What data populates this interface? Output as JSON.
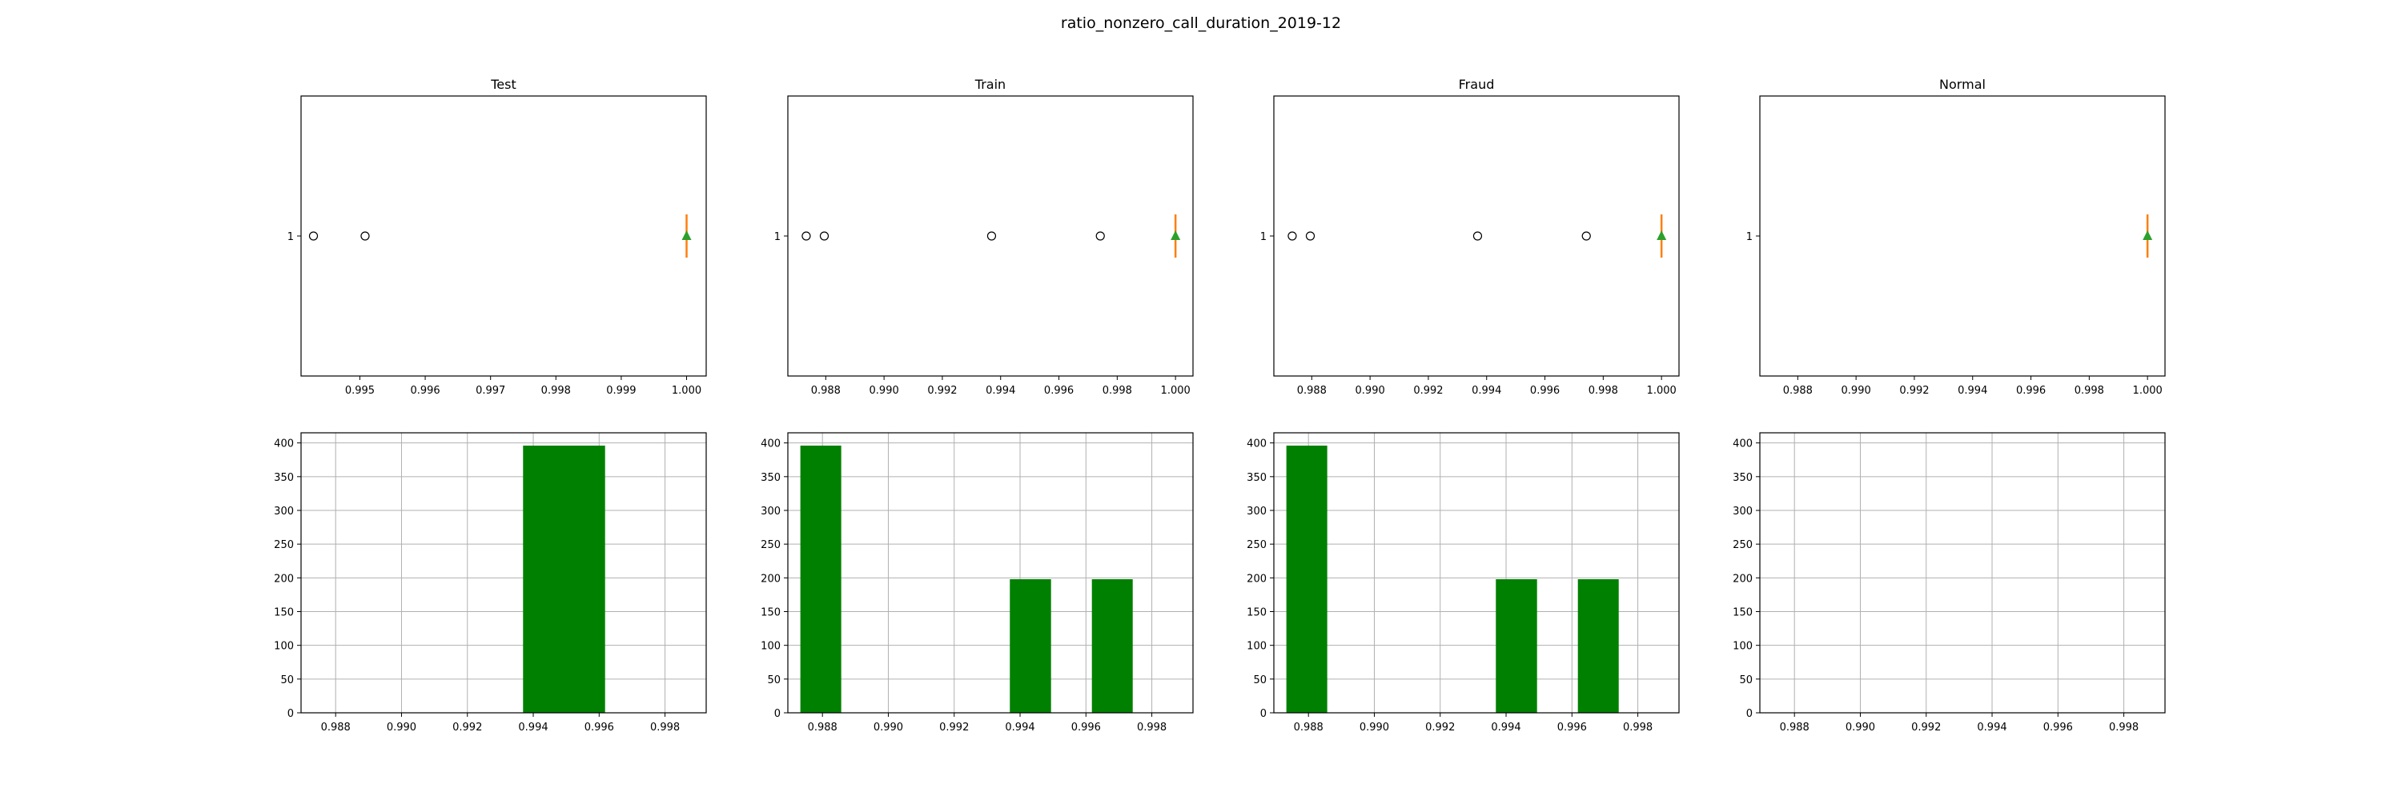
{
  "figure": {
    "title": "ratio_nonzero_call_duration_2019-12"
  },
  "colors": {
    "bar": "#008000",
    "median": "#ff7f0e",
    "mean_marker": "#2ca02c",
    "grid": "#b0b0b0",
    "axis": "#000000"
  },
  "chart_data": [
    {
      "type": "boxplot",
      "name": "Test",
      "title": "Test",
      "orient": "horizontal",
      "xlim": [
        0.9941,
        1.0003
      ],
      "xticks": [
        0.995,
        0.996,
        0.997,
        0.998,
        0.999,
        1.0
      ],
      "xtick_labels": [
        "0.995",
        "0.996",
        "0.997",
        "0.998",
        "0.999",
        "1.000"
      ],
      "yticks": [
        1
      ],
      "ytick_labels": [
        "1"
      ],
      "box": {
        "q1": 1.0,
        "median": 1.0,
        "q3": 1.0,
        "whisker_low": 1.0,
        "whisker_high": 1.0,
        "mean": 1.0
      },
      "fliers": [
        0.99429,
        0.99508
      ]
    },
    {
      "type": "boxplot",
      "name": "Train",
      "title": "Train",
      "orient": "horizontal",
      "xlim": [
        0.9867,
        1.0006
      ],
      "xticks": [
        0.988,
        0.99,
        0.992,
        0.994,
        0.996,
        0.998,
        1.0
      ],
      "xtick_labels": [
        "0.988",
        "0.990",
        "0.992",
        "0.994",
        "0.996",
        "0.998",
        "1.000"
      ],
      "yticks": [
        1
      ],
      "ytick_labels": [
        "1"
      ],
      "box": {
        "q1": 1.0,
        "median": 1.0,
        "q3": 1.0,
        "whisker_low": 1.0,
        "whisker_high": 1.0,
        "mean": 1.0
      },
      "fliers": [
        0.98733,
        0.98795,
        0.99369,
        0.99742
      ]
    },
    {
      "type": "boxplot",
      "name": "Fraud",
      "title": "Fraud",
      "orient": "horizontal",
      "xlim": [
        0.9867,
        1.0006
      ],
      "xticks": [
        0.988,
        0.99,
        0.992,
        0.994,
        0.996,
        0.998,
        1.0
      ],
      "xtick_labels": [
        "0.988",
        "0.990",
        "0.992",
        "0.994",
        "0.996",
        "0.998",
        "1.000"
      ],
      "yticks": [
        1
      ],
      "ytick_labels": [
        "1"
      ],
      "box": {
        "q1": 1.0,
        "median": 1.0,
        "q3": 1.0,
        "whisker_low": 1.0,
        "whisker_high": 1.0,
        "mean": 1.0
      },
      "fliers": [
        0.98733,
        0.98795,
        0.99369,
        0.99742
      ]
    },
    {
      "type": "boxplot",
      "name": "Normal",
      "title": "Normal",
      "orient": "horizontal",
      "xlim": [
        0.9867,
        1.0006
      ],
      "xticks": [
        0.988,
        0.99,
        0.992,
        0.994,
        0.996,
        0.998,
        1.0
      ],
      "xtick_labels": [
        "0.988",
        "0.990",
        "0.992",
        "0.994",
        "0.996",
        "0.998",
        "1.000"
      ],
      "yticks": [
        1
      ],
      "ytick_labels": [
        "1"
      ],
      "box": {
        "q1": 1.0,
        "median": 1.0,
        "q3": 1.0,
        "whisker_low": 1.0,
        "whisker_high": 1.0,
        "mean": 1.0
      },
      "fliers": []
    },
    {
      "type": "histogram",
      "name": "Test-hist",
      "xlim": [
        0.98695,
        0.99925
      ],
      "ylim": [
        0,
        415
      ],
      "xticks": [
        0.988,
        0.99,
        0.992,
        0.994,
        0.996,
        0.998
      ],
      "xtick_labels": [
        "0.988",
        "0.990",
        "0.992",
        "0.994",
        "0.996",
        "0.998"
      ],
      "yticks": [
        0,
        50,
        100,
        150,
        200,
        250,
        300,
        350,
        400
      ],
      "ytick_labels": [
        "0",
        "50",
        "100",
        "150",
        "200",
        "250",
        "300",
        "350",
        "400"
      ],
      "grid": true,
      "bins": [
        {
          "x0": 0.99369,
          "x1": 0.99618,
          "count": 396
        }
      ]
    },
    {
      "type": "histogram",
      "name": "Train-hist",
      "xlim": [
        0.98695,
        0.99925
      ],
      "ylim": [
        0,
        415
      ],
      "xticks": [
        0.988,
        0.99,
        0.992,
        0.994,
        0.996,
        0.998
      ],
      "xtick_labels": [
        "0.988",
        "0.990",
        "0.992",
        "0.994",
        "0.996",
        "0.998"
      ],
      "yticks": [
        0,
        50,
        100,
        150,
        200,
        250,
        300,
        350,
        400
      ],
      "ytick_labels": [
        "0",
        "50",
        "100",
        "150",
        "200",
        "250",
        "300",
        "350",
        "400"
      ],
      "grid": true,
      "bins": [
        {
          "x0": 0.98733,
          "x1": 0.98857,
          "count": 396
        },
        {
          "x0": 0.99369,
          "x1": 0.99494,
          "count": 198
        },
        {
          "x0": 0.99618,
          "x1": 0.99742,
          "count": 198
        }
      ]
    },
    {
      "type": "histogram",
      "name": "Fraud-hist",
      "xlim": [
        0.98695,
        0.99925
      ],
      "ylim": [
        0,
        415
      ],
      "xticks": [
        0.988,
        0.99,
        0.992,
        0.994,
        0.996,
        0.998
      ],
      "xtick_labels": [
        "0.988",
        "0.990",
        "0.992",
        "0.994",
        "0.996",
        "0.998"
      ],
      "yticks": [
        0,
        50,
        100,
        150,
        200,
        250,
        300,
        350,
        400
      ],
      "ytick_labels": [
        "0",
        "50",
        "100",
        "150",
        "200",
        "250",
        "300",
        "350",
        "400"
      ],
      "grid": true,
      "bins": [
        {
          "x0": 0.98733,
          "x1": 0.98857,
          "count": 396
        },
        {
          "x0": 0.99369,
          "x1": 0.99494,
          "count": 198
        },
        {
          "x0": 0.99618,
          "x1": 0.99742,
          "count": 198
        }
      ]
    },
    {
      "type": "histogram",
      "name": "Normal-hist",
      "xlim": [
        0.98695,
        0.99925
      ],
      "ylim": [
        0,
        415
      ],
      "xticks": [
        0.988,
        0.99,
        0.992,
        0.994,
        0.996,
        0.998
      ],
      "xtick_labels": [
        "0.988",
        "0.990",
        "0.992",
        "0.994",
        "0.996",
        "0.998"
      ],
      "yticks": [
        0,
        50,
        100,
        150,
        200,
        250,
        300,
        350,
        400
      ],
      "ytick_labels": [
        "0",
        "50",
        "100",
        "150",
        "200",
        "250",
        "300",
        "350",
        "400"
      ],
      "grid": true,
      "bins": []
    }
  ]
}
